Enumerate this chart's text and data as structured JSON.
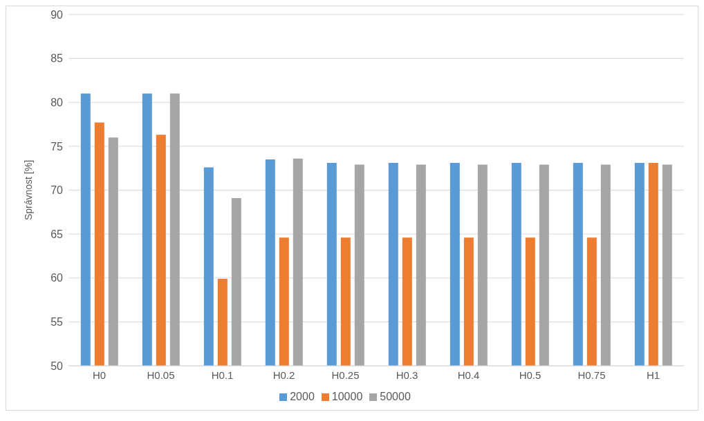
{
  "chart_data": {
    "type": "bar",
    "ylabel": "Správnost [%]",
    "categories": [
      "H0",
      "H0.05",
      "H0.1",
      "H0.2",
      "H0.25",
      "H0.3",
      "H0.4",
      "H0.5",
      "H0.75",
      "H1"
    ],
    "series": [
      {
        "name": "2000",
        "color": "#5b9bd5",
        "values": [
          81.0,
          81.0,
          72.6,
          73.5,
          73.1,
          73.1,
          73.1,
          73.1,
          73.1,
          73.1
        ]
      },
      {
        "name": "10000",
        "color": "#ed7d31",
        "values": [
          77.7,
          76.3,
          59.9,
          64.6,
          64.6,
          64.6,
          64.6,
          64.6,
          64.6,
          73.1
        ]
      },
      {
        "name": "50000",
        "color": "#a5a5a5",
        "values": [
          76.0,
          81.0,
          69.1,
          73.6,
          72.9,
          72.9,
          72.9,
          72.9,
          72.9,
          72.9
        ]
      }
    ],
    "ylim": [
      50,
      90
    ],
    "yticks": [
      50,
      55,
      60,
      65,
      70,
      75,
      80,
      85,
      90
    ],
    "grid": "y",
    "legend": "bottom"
  }
}
